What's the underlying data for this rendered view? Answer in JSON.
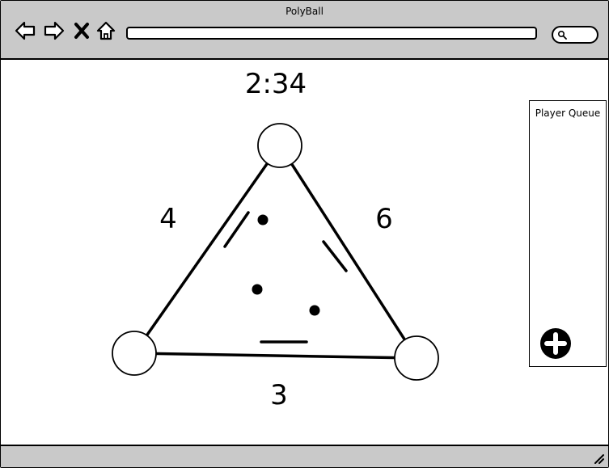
{
  "window": {
    "title": "PolyBall"
  },
  "toolbar": {
    "back_icon": "arrow-left-icon",
    "forward_icon": "arrow-right-icon",
    "stop_icon": "close-icon",
    "home_icon": "home-icon",
    "url_value": "",
    "search_icon": "search-icon"
  },
  "game": {
    "timer": "2:34",
    "scores": {
      "left": "4",
      "right": "6",
      "bottom": "3"
    }
  },
  "queue": {
    "title": "Player Queue",
    "add_icon": "plus-circle-icon"
  },
  "statusbar": {
    "grip_icon": "resize-grip-icon"
  }
}
